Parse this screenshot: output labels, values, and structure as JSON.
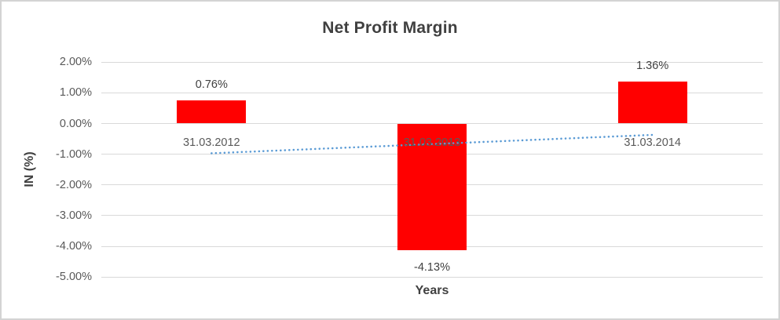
{
  "chart_data": {
    "type": "bar",
    "title": "Net Profit Margin",
    "xlabel": "Years",
    "ylabel": "IN (%)",
    "categories": [
      "31.03.2012",
      "31.03.2013",
      "31.03.2014"
    ],
    "values": [
      0.76,
      -4.13,
      1.36
    ],
    "data_labels": [
      "0.76%",
      "-4.13%",
      "1.36%"
    ],
    "y_ticks": [
      {
        "label": "2.00%",
        "value": 2
      },
      {
        "label": "1.00%",
        "value": 1
      },
      {
        "label": "0.00%",
        "value": 0
      },
      {
        "label": "-1.00%",
        "value": -1
      },
      {
        "label": "-2.00%",
        "value": -2
      },
      {
        "label": "-3.00%",
        "value": -3
      },
      {
        "label": "-4.00%",
        "value": -4
      },
      {
        "label": "-5.00%",
        "value": -5
      }
    ],
    "ylim": [
      -5,
      2
    ],
    "grid": true,
    "legend": "none",
    "trendline": {
      "type": "linear",
      "style": "dotted",
      "points": [
        [
          0,
          -0.97
        ],
        [
          2,
          -0.37
        ]
      ]
    },
    "colors": {
      "bar": "#FF0000",
      "trendline": "#5B9BD5",
      "gridline": "#D9D9D9",
      "title_text": "#404040",
      "tick_text": "#595959",
      "frame_border": "#D3D3D3",
      "background": "#FFFFFF"
    }
  }
}
